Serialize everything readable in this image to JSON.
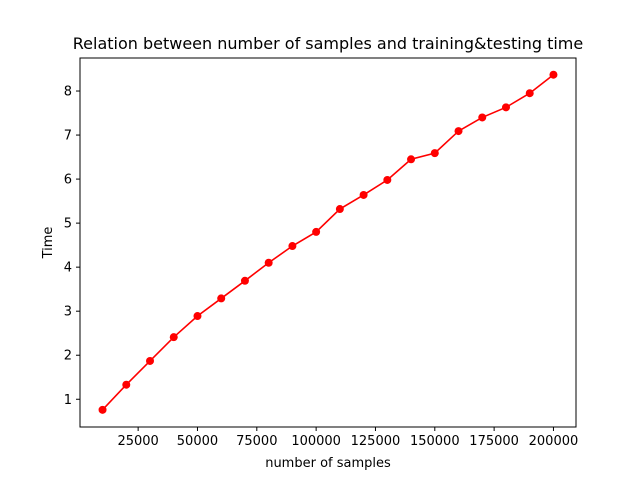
{
  "chart_data": {
    "type": "line",
    "title": "Relation between number of samples and training&testing time",
    "xlabel": "number of samples",
    "ylabel": "Time",
    "xlim": [
      500,
      209500
    ],
    "ylim": [
      0.37,
      8.75
    ],
    "xticks": [
      25000,
      50000,
      75000,
      100000,
      125000,
      150000,
      175000,
      200000
    ],
    "xtick_labels": [
      "25000",
      "50000",
      "75000",
      "100000",
      "125000",
      "150000",
      "175000",
      "200000"
    ],
    "yticks": [
      1,
      2,
      3,
      4,
      5,
      6,
      7,
      8
    ],
    "ytick_labels": [
      "1",
      "2",
      "3",
      "4",
      "5",
      "6",
      "7",
      "8"
    ],
    "grid": false,
    "legend": "none",
    "series": [
      {
        "color": "#ff0000",
        "marker": "circle",
        "x": [
          10000,
          20000,
          30000,
          40000,
          50000,
          60000,
          70000,
          80000,
          90000,
          100000,
          110000,
          120000,
          130000,
          140000,
          150000,
          160000,
          170000,
          180000,
          190000,
          200000
        ],
        "y": [
          0.76,
          1.33,
          1.87,
          2.41,
          2.89,
          3.29,
          3.69,
          4.1,
          4.48,
          4.8,
          5.32,
          5.64,
          5.98,
          6.45,
          6.59,
          7.09,
          7.4,
          7.63,
          7.95,
          8.37
        ]
      }
    ]
  }
}
